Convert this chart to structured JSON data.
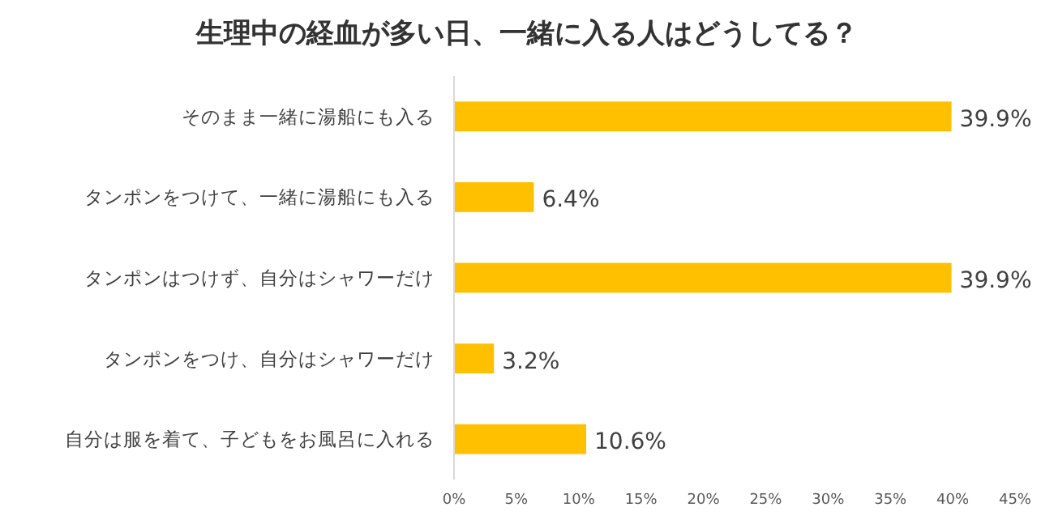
{
  "chart_data": {
    "type": "bar",
    "orientation": "horizontal",
    "title": "生理中の経血が多い日、一緒に入る人はどうしてる？",
    "categories": [
      "そのまま一緒に湯船にも入る",
      "タンポンをつけて、一緒に湯船にも入る",
      "タンポンはつけず、自分はシャワーだけ",
      "タンポンをつけ、自分はシャワーだけ",
      "自分は服を着て、子どもをお風呂に入れる"
    ],
    "values": [
      39.9,
      6.4,
      39.9,
      3.2,
      10.6
    ],
    "value_labels": [
      "39.9%",
      "6.4%",
      "39.9%",
      "3.2%",
      "10.6%"
    ],
    "color": "#ffc000",
    "xlim": [
      0,
      45
    ],
    "xticks": [
      {
        "value": 0,
        "label": "0%"
      },
      {
        "value": 5,
        "label": "5%"
      },
      {
        "value": 10,
        "label": "10%"
      },
      {
        "value": 15,
        "label": "15%"
      },
      {
        "value": 20,
        "label": "20%"
      },
      {
        "value": 25,
        "label": "25%"
      },
      {
        "value": 30,
        "label": "30%"
      },
      {
        "value": 35,
        "label": "35%"
      },
      {
        "value": 40,
        "label": "40%"
      },
      {
        "value": 45,
        "label": "45%"
      }
    ],
    "grid": false
  }
}
